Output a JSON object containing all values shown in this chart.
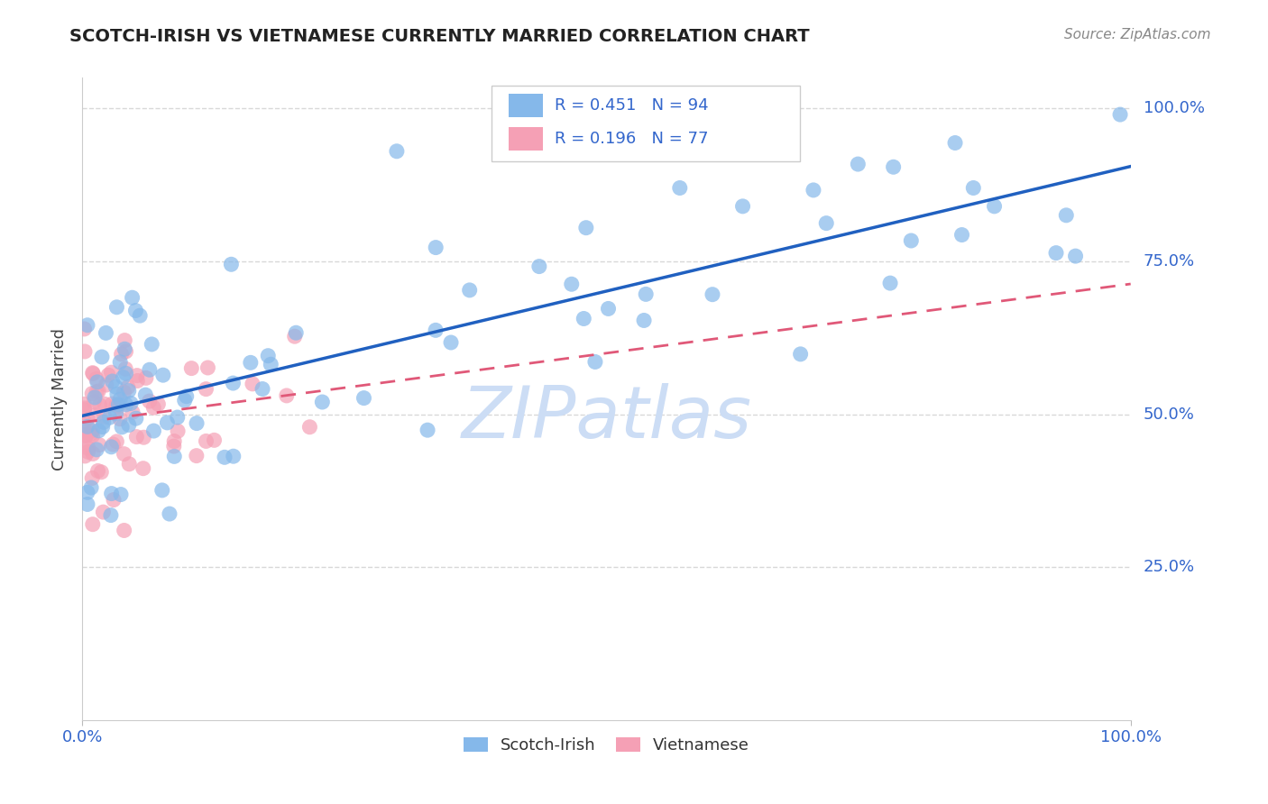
{
  "title": "SCOTCH-IRISH VS VIETNAMESE CURRENTLY MARRIED CORRELATION CHART",
  "source": "Source: ZipAtlas.com",
  "ylabel": "Currently Married",
  "scotch_irish_R": "0.451",
  "scotch_irish_N": "94",
  "vietnamese_R": "0.196",
  "vietnamese_N": "77",
  "legend_scotch_label": "Scotch-Irish",
  "legend_viet_label": "Vietnamese",
  "scatter_scotch_color": "#85b8ea",
  "scatter_viet_color": "#f5a0b5",
  "line_scotch_color": "#2060c0",
  "line_viet_color": "#e05878",
  "watermark": "ZIPatlas",
  "watermark_color": "#ccddf5",
  "background_color": "#ffffff",
  "grid_color": "#d8d8d8",
  "title_color": "#222222",
  "source_color": "#888888",
  "axis_color": "#3366cc",
  "label_color": "#444444"
}
